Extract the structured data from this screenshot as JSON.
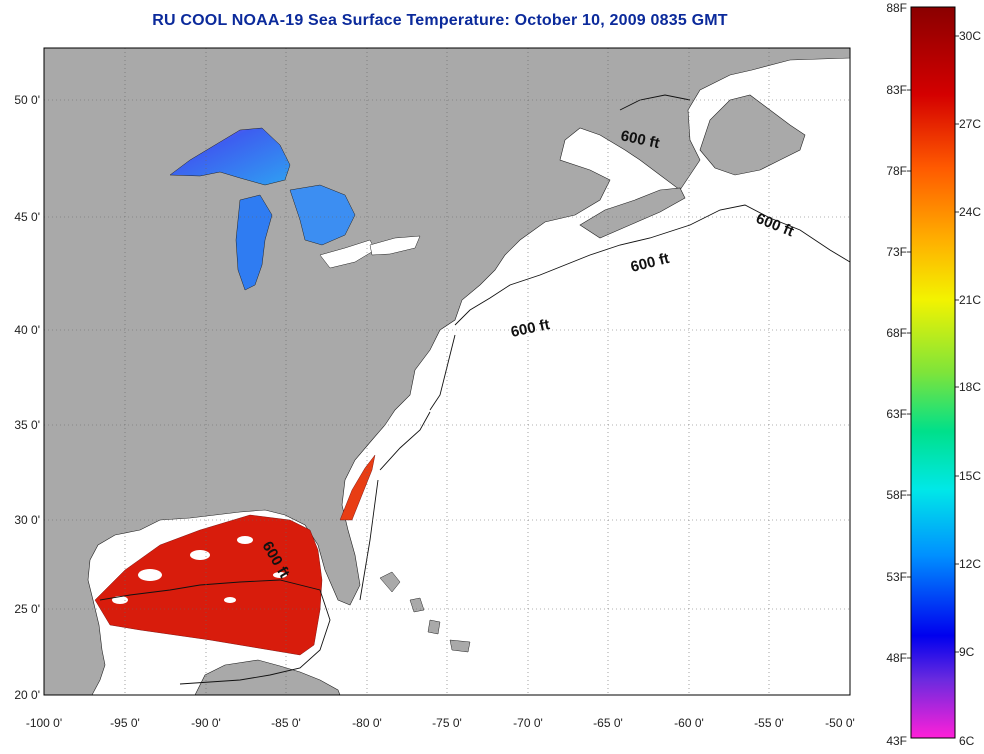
{
  "title": "RU COOL  NOAA-19  Sea Surface Temperature:  October 10, 2009 0835 GMT",
  "axes": {
    "lon_labels": [
      "-100 0'",
      "-95 0'",
      "-90 0'",
      "-85 0'",
      "-80 0'",
      "-75 0'",
      "-70 0'",
      "-65 0'",
      "-60 0'",
      "-55 0'",
      "-50 0'"
    ],
    "lat_labels": [
      "50 0'",
      "45 0'",
      "40 0'",
      "35 0'",
      "30 0'",
      "25 0'",
      "20 0'"
    ]
  },
  "contour_labels": [
    "600 ft",
    "600 ft",
    "600 ft",
    "600 ft",
    "600 ft"
  ],
  "colorbar": {
    "fahrenheit": [
      "88F",
      "83F",
      "78F",
      "73F",
      "68F",
      "63F",
      "58F",
      "53F",
      "48F",
      "43F"
    ],
    "celsius": [
      "30C",
      "27C",
      "24C",
      "21C",
      "18C",
      "15C",
      "12C",
      "9C",
      "6C"
    ]
  },
  "colors": {
    "land": "#a9a9a9",
    "ocean": "#ffffff",
    "sst_warm": "#d81c0c",
    "sst_lakes": "#2f7cf2",
    "title": "#0b2a9b"
  }
}
